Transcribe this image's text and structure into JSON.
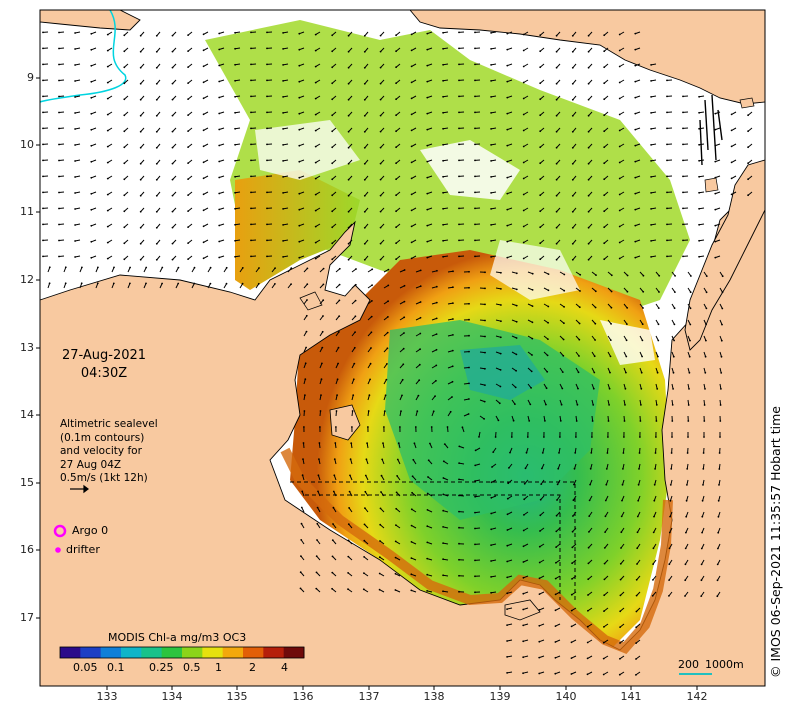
{
  "map": {
    "date_label": "27-Aug-2021",
    "time_label": "04:30Z",
    "info_lines": [
      "Altimetric sealevel",
      "(0.1m contours)",
      "and velocity for",
      "27 Aug 04Z",
      "0.5m/s (1kt 12h)"
    ],
    "legend": {
      "argo_label": "Argo 0",
      "drifter_label": "drifter",
      "marker_color": "#ff00ff"
    },
    "colorbar": {
      "title": "MODIS Chl-a mg/m3 OC3",
      "ticks": [
        "0.05",
        "0.1",
        "0.25",
        "0.5",
        "1",
        "2",
        "4"
      ],
      "colors": [
        "#2b0a8a",
        "#1d3fc4",
        "#0f7fd8",
        "#10b5c8",
        "#19c28a",
        "#2cc43f",
        "#8bd41a",
        "#e6e10f",
        "#f3a80c",
        "#e25f07",
        "#b51f0a",
        "#6f0a0a"
      ]
    },
    "scale_bar": {
      "labels": [
        "200",
        "1000m"
      ]
    },
    "credit": "© IMOS 06-Sep-2021 11:35:57 Hobart time",
    "axes": {
      "lat_ticks": [
        "9",
        "10",
        "11",
        "12",
        "13",
        "14",
        "15",
        "16",
        "17"
      ],
      "lon_ticks": [
        "133",
        "134",
        "135",
        "136",
        "137",
        "138",
        "139",
        "140",
        "141",
        "142"
      ]
    },
    "colors": {
      "land": "#f8c9a0",
      "no_data": "#ffffff",
      "coast": "#000000",
      "contour": "#00d4e0"
    }
  }
}
